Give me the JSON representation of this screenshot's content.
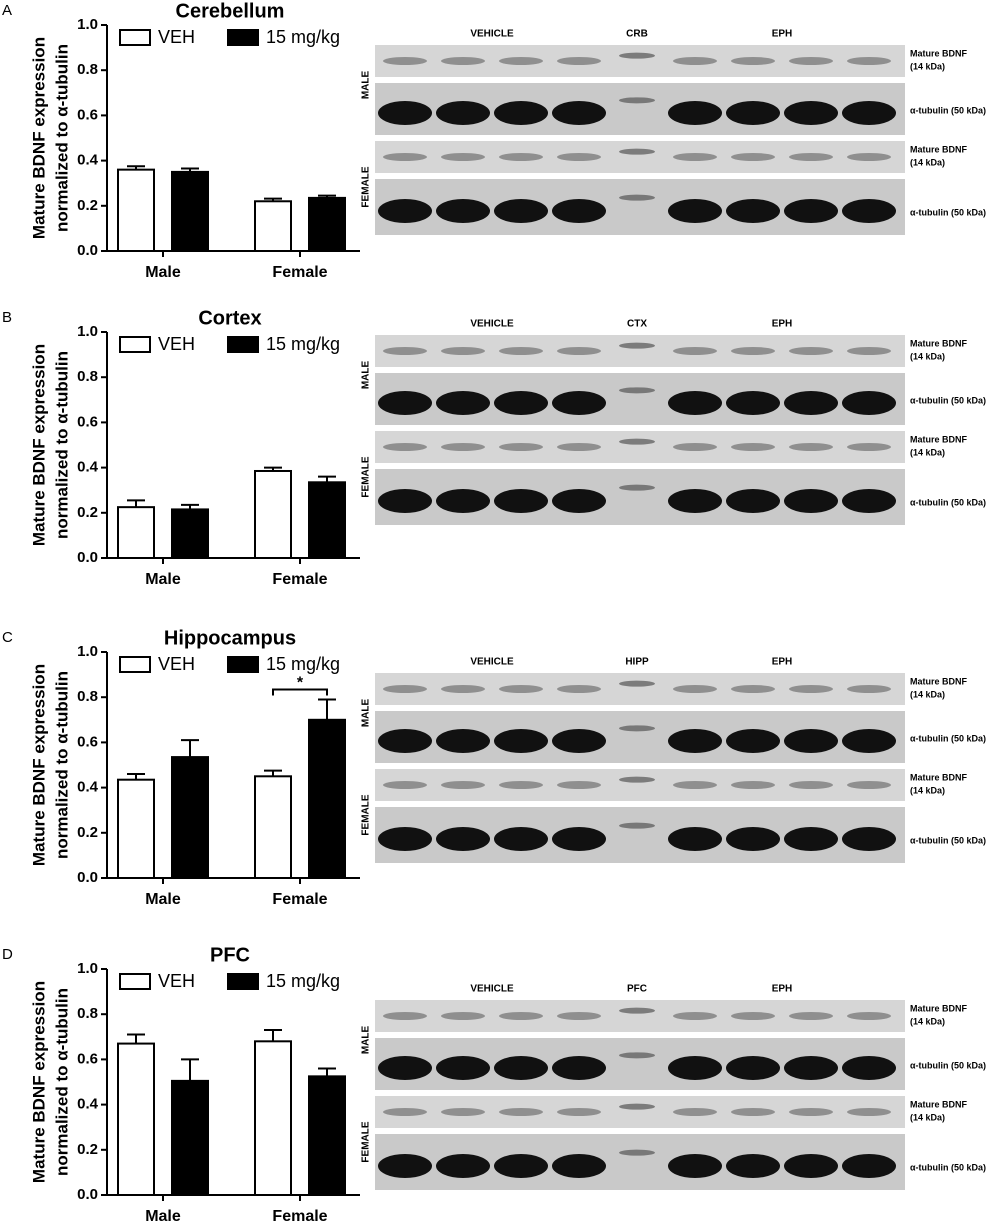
{
  "panel_letters": [
    "A",
    "B",
    "C",
    "D"
  ],
  "chart_data": [
    {
      "type": "bar",
      "title": "Cerebellum",
      "ylabel": [
        "Mature BDNF expression",
        "normalized to α-tubulin"
      ],
      "categories": [
        "Male",
        "Female"
      ],
      "ylim": [
        0,
        1
      ],
      "yticks": [
        {
          "value": 0,
          "label": "0.0"
        },
        0.2,
        0.4,
        0.6,
        0.8,
        {
          "value": 1,
          "label": "1.0"
        }
      ],
      "series": [
        {
          "name": "VEH",
          "color": "#ffffff",
          "values": [
            0.36,
            0.22
          ],
          "errors": [
            0.015,
            0.012
          ]
        },
        {
          "name": "15 mg/kg",
          "color": "#000000",
          "values": [
            0.35,
            0.235
          ],
          "errors": [
            0.015,
            0.01
          ]
        }
      ]
    },
    {
      "type": "bar",
      "title": "Cortex",
      "ylabel": [
        "Mature BDNF expression",
        "normalized to α-tubulin"
      ],
      "categories": [
        "Male",
        "Female"
      ],
      "ylim": [
        0,
        1
      ],
      "yticks": [
        {
          "value": 0,
          "label": "0.0"
        },
        0.2,
        0.4,
        0.6,
        0.8,
        {
          "value": 1,
          "label": "1.0"
        }
      ],
      "series": [
        {
          "name": "VEH",
          "color": "#ffffff",
          "values": [
            0.225,
            0.385
          ],
          "errors": [
            0.03,
            0.015
          ]
        },
        {
          "name": "15 mg/kg",
          "color": "#000000",
          "values": [
            0.215,
            0.335
          ],
          "errors": [
            0.02,
            0.025
          ]
        }
      ]
    },
    {
      "type": "bar",
      "title": "Hippocampus",
      "ylabel": [
        "Mature BDNF expression",
        "normalized to α-tubulin"
      ],
      "categories": [
        "Male",
        "Female"
      ],
      "ylim": [
        0,
        1
      ],
      "yticks": [
        {
          "value": 0,
          "label": "0.0"
        },
        0.2,
        0.4,
        0.6,
        0.8,
        {
          "value": 1,
          "label": "1.0"
        }
      ],
      "series": [
        {
          "name": "VEH",
          "color": "#ffffff",
          "values": [
            0.435,
            0.45
          ],
          "errors": [
            0.025,
            0.025
          ]
        },
        {
          "name": "15 mg/kg",
          "color": "#000000",
          "values": [
            0.535,
            0.7
          ],
          "errors": [
            0.075,
            0.09
          ]
        }
      ],
      "significance": {
        "category": 1,
        "label": "*"
      }
    },
    {
      "type": "bar",
      "title": "PFC",
      "ylabel": [
        "Mature BDNF expression",
        "normalized to α-tubulin"
      ],
      "categories": [
        "Male",
        "Female"
      ],
      "ylim": [
        0,
        1
      ],
      "yticks": [
        {
          "value": 0,
          "label": "0.0"
        },
        0.2,
        0.4,
        0.6,
        0.8,
        {
          "value": 1,
          "label": "1.0"
        }
      ],
      "series": [
        {
          "name": "VEH",
          "color": "#ffffff",
          "values": [
            0.67,
            0.68
          ],
          "errors": [
            0.04,
            0.05
          ]
        },
        {
          "name": "15 mg/kg",
          "color": "#000000",
          "values": [
            0.505,
            0.525
          ],
          "errors": [
            0.095,
            0.035
          ]
        }
      ]
    }
  ],
  "blots": [
    {
      "groups": [
        "VEHICLE",
        "CRB",
        "EPH"
      ],
      "rows": [
        "MALE",
        "FEMALE"
      ],
      "bdnf_label": [
        "Mature BDNF",
        "(14 kDa)"
      ],
      "tubulin_label": "α-tubulin (50 kDa)"
    },
    {
      "groups": [
        "VEHICLE",
        "CTX",
        "EPH"
      ],
      "rows": [
        "MALE",
        "FEMALE"
      ],
      "bdnf_label": [
        "Mature BDNF",
        "(14 kDa)"
      ],
      "tubulin_label": "α-tubulin (50 kDa)"
    },
    {
      "groups": [
        "VEHICLE",
        "HIPP",
        "EPH"
      ],
      "rows": [
        "MALE",
        "FEMALE"
      ],
      "bdnf_label": [
        "Mature BDNF",
        "(14 kDa)"
      ],
      "tubulin_label": "α-tubulin (50 kDa)"
    },
    {
      "groups": [
        "VEHICLE",
        "PFC",
        "EPH"
      ],
      "rows": [
        "MALE",
        "FEMALE"
      ],
      "bdnf_label": [
        "Mature BDNF",
        "(14 kDa)"
      ],
      "tubulin_label": "α-tubulin (50 kDa)"
    }
  ]
}
